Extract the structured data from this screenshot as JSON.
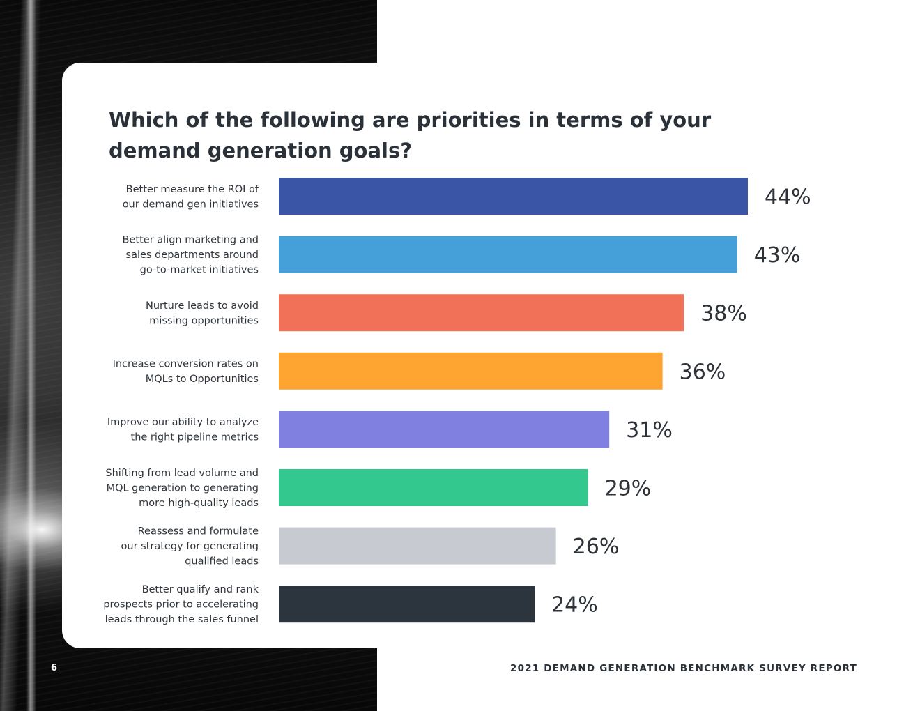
{
  "chart_data": {
    "type": "bar",
    "orientation": "horizontal",
    "title": "Which of the following are priorities in terms of your demand generation goals?",
    "categories": [
      [
        "Better measure the ROI of",
        "our demand gen initiatives"
      ],
      [
        "Better align marketing and",
        "sales departments around",
        "go-to-market initiatives"
      ],
      [
        "Nurture leads to avoid",
        "missing opportunities"
      ],
      [
        "Increase conversion rates on",
        "MQLs to Opportunities"
      ],
      [
        "Improve our ability to analyze",
        "the right pipeline metrics"
      ],
      [
        "Shifting from lead volume and",
        "MQL generation to generating",
        "more high-quality leads"
      ],
      [
        "Reassess and formulate",
        "our strategy for generating",
        "qualified leads"
      ],
      [
        "Better qualify and rank",
        "prospects prior to accelerating",
        "leads through the sales funnel"
      ]
    ],
    "values": [
      44,
      43,
      38,
      36,
      31,
      29,
      26,
      24
    ],
    "value_labels": [
      "44%",
      "43%",
      "38%",
      "36%",
      "31%",
      "29%",
      "26%",
      "24%"
    ],
    "unit": "%",
    "xlim": [
      0,
      44
    ],
    "colors": [
      "#3a55a5",
      "#459fd9",
      "#f07058",
      "#fda530",
      "#8080e0",
      "#33c98e",
      "#c7cbd1",
      "#2c353d"
    ],
    "grid": false,
    "legend": "none"
  },
  "footer": {
    "page_number": "6",
    "report_name": "2021 DEMAND GENERATION BENCHMARK SURVEY REPORT"
  }
}
